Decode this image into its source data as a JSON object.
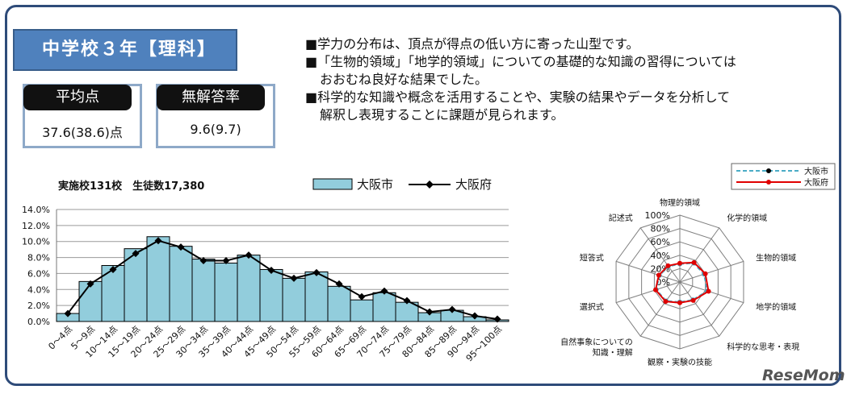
{
  "header": {
    "title": "中学校３年【理科】"
  },
  "stats": [
    {
      "label": "平均点",
      "value": "37.6(38.6)点"
    },
    {
      "label": "無解答率",
      "value": "9.6(9.7)"
    }
  ],
  "notes": [
    "■学力の分布は、頂点が得点の低い方に寄った山型です。",
    "■「生物的領域」「地学的領域」についての基礎的な知識の習得については",
    "おおむね良好な結果でした。",
    "■科学的な知識や概念を活用することや、実験の結果やデータを分析して",
    "解釈し表現することに課題が見られます。"
  ],
  "logo": "ReseMom",
  "chart_data": [
    {
      "type": "bar",
      "title": "実施校131校　生徒数17,380",
      "categories": [
        "0～4点",
        "5～9点",
        "10～14点",
        "15～19点",
        "20～24点",
        "25～29点",
        "30～34点",
        "35～39点",
        "40～44点",
        "45～49点",
        "50～54点",
        "55～59点",
        "60～64点",
        "65～69点",
        "70～74点",
        "75～79点",
        "80～84点",
        "85～89点",
        "90～94点",
        "95～100点"
      ],
      "series": [
        {
          "name": "大阪市",
          "kind": "bar",
          "color": "#92cddc",
          "values": [
            1.0,
            5.0,
            7.0,
            9.1,
            10.6,
            9.4,
            7.8,
            7.3,
            8.3,
            6.5,
            5.4,
            6.2,
            4.4,
            2.7,
            3.6,
            2.4,
            1.1,
            1.4,
            0.6,
            0.2
          ]
        },
        {
          "name": "大阪府",
          "kind": "line",
          "color": "#000000",
          "values": [
            1.0,
            4.7,
            6.5,
            8.5,
            10.1,
            9.3,
            7.6,
            7.6,
            8.3,
            6.4,
            5.4,
            6.1,
            4.7,
            3.1,
            3.8,
            2.6,
            1.2,
            1.5,
            0.7,
            0.3
          ]
        }
      ],
      "ylim": [
        0,
        14
      ],
      "yticks": [
        "0.0%",
        "2.0%",
        "4.0%",
        "6.0%",
        "8.0%",
        "10.0%",
        "12.0%",
        "14.0%"
      ],
      "grid": true,
      "legend": "top"
    },
    {
      "type": "radar",
      "axes": [
        "物理的領域",
        "化学的領域",
        "生物的領域",
        "地学的領域",
        "科学的な思考・表現",
        "観察・実験の技能",
        "自然事象についての知識・理解",
        "選択式",
        "短答式",
        "記述式"
      ],
      "axes_display": [
        "物理的領域",
        "化学的領域",
        "生物的領域",
        "地学的領域",
        "科学的な思考・表現",
        "観察・実験の技能",
        "自然事象についての|知識・理解",
        "選択式",
        "短答式",
        "記述式"
      ],
      "rlim": [
        0,
        100
      ],
      "rticks": [
        "0%",
        "20%",
        "40%",
        "60%",
        "80%",
        "100%"
      ],
      "series": [
        {
          "name": "大阪市",
          "color": "#4bacc6",
          "dashed": true,
          "values": [
            27,
            35,
            38,
            43,
            33,
            30,
            35,
            37,
            32,
            29
          ]
        },
        {
          "name": "大阪府",
          "color": "#e00000",
          "dashed": false,
          "values": [
            28,
            36,
            40,
            45,
            34,
            31,
            36,
            38,
            33,
            30
          ]
        }
      ],
      "legend": "top-right"
    }
  ]
}
